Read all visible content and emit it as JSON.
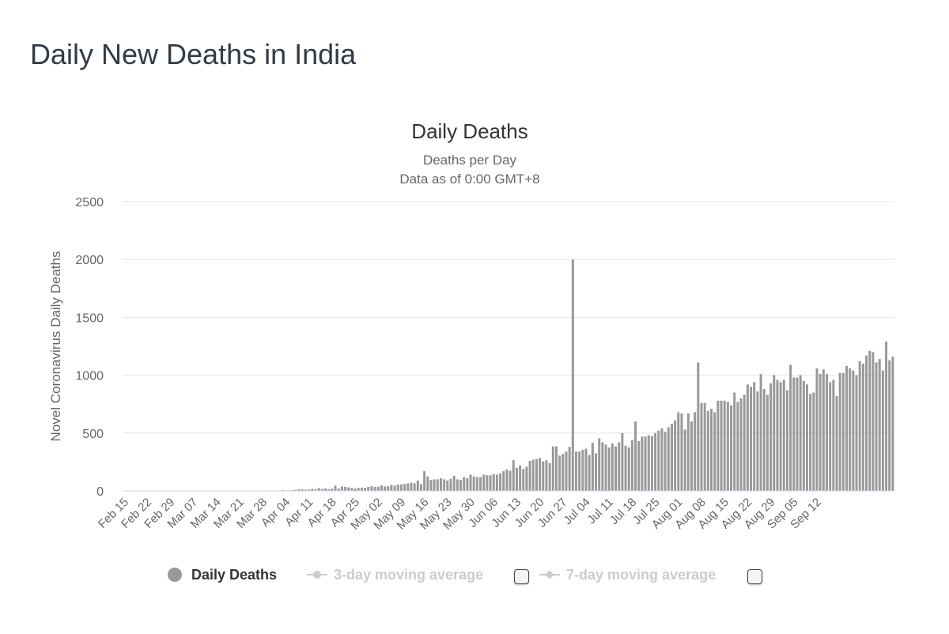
{
  "page": {
    "title": "Daily New Deaths in India"
  },
  "legend": {
    "items": [
      {
        "label": "Daily Deaths",
        "active": true,
        "icon": "circle-icon"
      },
      {
        "label": "3-day moving average",
        "active": false,
        "icon": "line-circle-icon"
      },
      {
        "label": "7-day moving average",
        "active": false,
        "icon": "line-diamond-icon"
      }
    ]
  },
  "chart_data": {
    "type": "bar",
    "title": "Daily Deaths",
    "subtitle": "Deaths per Day",
    "subtitle2": "Data as of 0:00 GMT+8",
    "ylabel": "Novel Coronavirus Daily Deaths",
    "xlabel": "",
    "ylim": [
      0,
      2500
    ],
    "yticks": [
      0,
      500,
      1000,
      1500,
      2000,
      2500
    ],
    "grid": true,
    "legend_position": "bottom",
    "x_start": "2020-02-15",
    "x_end": "2020-09-17",
    "xtick_labels": [
      "Feb 15",
      "Feb 22",
      "Feb 29",
      "Mar 07",
      "Mar 14",
      "Mar 21",
      "Mar 28",
      "Apr 04",
      "Apr 11",
      "Apr 18",
      "Apr 25",
      "May 02",
      "May 09",
      "May 16",
      "May 23",
      "May 30",
      "Jun 06",
      "Jun 13",
      "Jun 20",
      "Jun 27",
      "Jul 04",
      "Jul 11",
      "Jul 18",
      "Jul 25",
      "Aug 01",
      "Aug 08",
      "Aug 15",
      "Aug 22",
      "Aug 29",
      "Sep 05",
      "Sep 12"
    ],
    "colors": {
      "bar": "#999999",
      "grid": "#e6e6e6",
      "axis": "#ccd6eb"
    },
    "series": [
      {
        "name": "Daily Deaths",
        "values": [
          0,
          0,
          0,
          0,
          0,
          0,
          0,
          0,
          0,
          0,
          0,
          0,
          0,
          0,
          0,
          0,
          0,
          0,
          0,
          0,
          0,
          0,
          0,
          0,
          1,
          0,
          0,
          0,
          0,
          0,
          0,
          1,
          0,
          0,
          1,
          0,
          0,
          1,
          0,
          2,
          0,
          0,
          3,
          2,
          3,
          4,
          2,
          3,
          7,
          5,
          5,
          7,
          10,
          15,
          15,
          11,
          12,
          18,
          15,
          25,
          18,
          22,
          16,
          20,
          45,
          22,
          38,
          35,
          30,
          26,
          20,
          27,
          28,
          26,
          34,
          40,
          34,
          37,
          48,
          38,
          40,
          52,
          46,
          55,
          56,
          60,
          65,
          70,
          65,
          90,
          58,
          170,
          125,
          95,
          100,
          100,
          110,
          100,
          90,
          105,
          130,
          100,
          95,
          120,
          110,
          140,
          125,
          120,
          120,
          140,
          135,
          135,
          145,
          140,
          150,
          170,
          185,
          175,
          265,
          200,
          220,
          190,
          210,
          260,
          270,
          275,
          285,
          255,
          265,
          240,
          385,
          385,
          305,
          320,
          340,
          380,
          2000,
          340,
          340,
          355,
          365,
          310,
          415,
          325,
          455,
          420,
          400,
          375,
          410,
          385,
          420,
          500,
          390,
          375,
          440,
          600,
          430,
          470,
          470,
          480,
          475,
          500,
          520,
          540,
          510,
          550,
          580,
          610,
          680,
          670,
          530,
          670,
          600,
          680,
          1110,
          760,
          760,
          690,
          710,
          680,
          780,
          780,
          780,
          770,
          740,
          850,
          770,
          800,
          830,
          920,
          900,
          940,
          860,
          1010,
          880,
          830,
          930,
          1000,
          960,
          940,
          960,
          870,
          1090,
          980,
          980,
          1000,
          950,
          920,
          840,
          850,
          1060,
          1010,
          1050,
          1010,
          940,
          960,
          820,
          1020,
          1020,
          1080,
          1060,
          1040,
          1000,
          1120,
          1100,
          1170,
          1210,
          1200,
          1110,
          1140,
          1040,
          1290,
          1130,
          1160
        ]
      }
    ]
  }
}
